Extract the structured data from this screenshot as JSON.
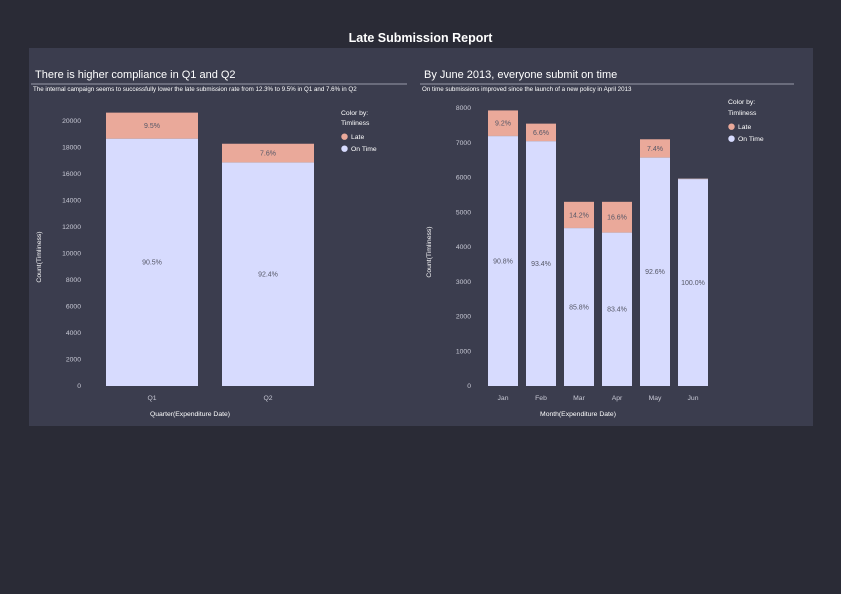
{
  "report_title": "Late Submission Report",
  "colors": {
    "late": "#eaa99a",
    "on_time": "#d7dbfe",
    "panel": "#3b3d4e",
    "background": "#2a2b36"
  },
  "chart_data": [
    {
      "type": "bar",
      "stacked": true,
      "title": "There is higher compliance in Q1 and Q2",
      "subtitle": "The internal campaign seems to successfully lower the late submission rate from 12.3% to 9.5% in Q1 and 7.6% in Q2",
      "xlabel": "Quarter(Expenditure Date)",
      "ylabel": "Count(Timliness)",
      "ylim": [
        0,
        21000
      ],
      "yticks": [
        0,
        2000,
        4000,
        6000,
        8000,
        10000,
        12000,
        14000,
        16000,
        18000,
        20000
      ],
      "categories": [
        "Q1",
        "Q2"
      ],
      "legend": {
        "title": "Color by: Timliness",
        "position": "top-right"
      },
      "series": [
        {
          "name": "On Time",
          "color": "#d7dbfe",
          "values": [
            18700,
            16900
          ],
          "labels": [
            "90.5%",
            "92.4%"
          ]
        },
        {
          "name": "Late",
          "color": "#eaa99a",
          "values": [
            1950,
            1400
          ],
          "labels": [
            "9.5%",
            "7.6%"
          ]
        }
      ]
    },
    {
      "type": "bar",
      "stacked": true,
      "title": "By June 2013, everyone submit on time",
      "subtitle": "On time submissions improved since the launch of a new policy in April 2013",
      "xlabel": "Month(Expenditure Date)",
      "ylabel": "Count(Timliness)",
      "ylim": [
        0,
        8000
      ],
      "yticks": [
        0,
        1000,
        2000,
        3000,
        4000,
        5000,
        6000,
        7000,
        8000
      ],
      "categories": [
        "Jan",
        "Feb",
        "Mar",
        "Apr",
        "May",
        "Jun"
      ],
      "legend": {
        "title": "Color by: Timliness",
        "position": "top-right"
      },
      "series": [
        {
          "name": "On Time",
          "color": "#d7dbfe",
          "values": [
            7200,
            7050,
            4550,
            4420,
            6580,
            5960
          ],
          "labels": [
            "90.8%",
            "93.4%",
            "85.8%",
            "83.4%",
            "92.6%",
            "100.0%"
          ]
        },
        {
          "name": "Late",
          "color": "#eaa99a",
          "values": [
            730,
            500,
            750,
            880,
            520,
            0
          ],
          "labels": [
            "9.2%",
            "6.6%",
            "14.2%",
            "16.6%",
            "7.4%",
            ""
          ]
        }
      ]
    }
  ]
}
